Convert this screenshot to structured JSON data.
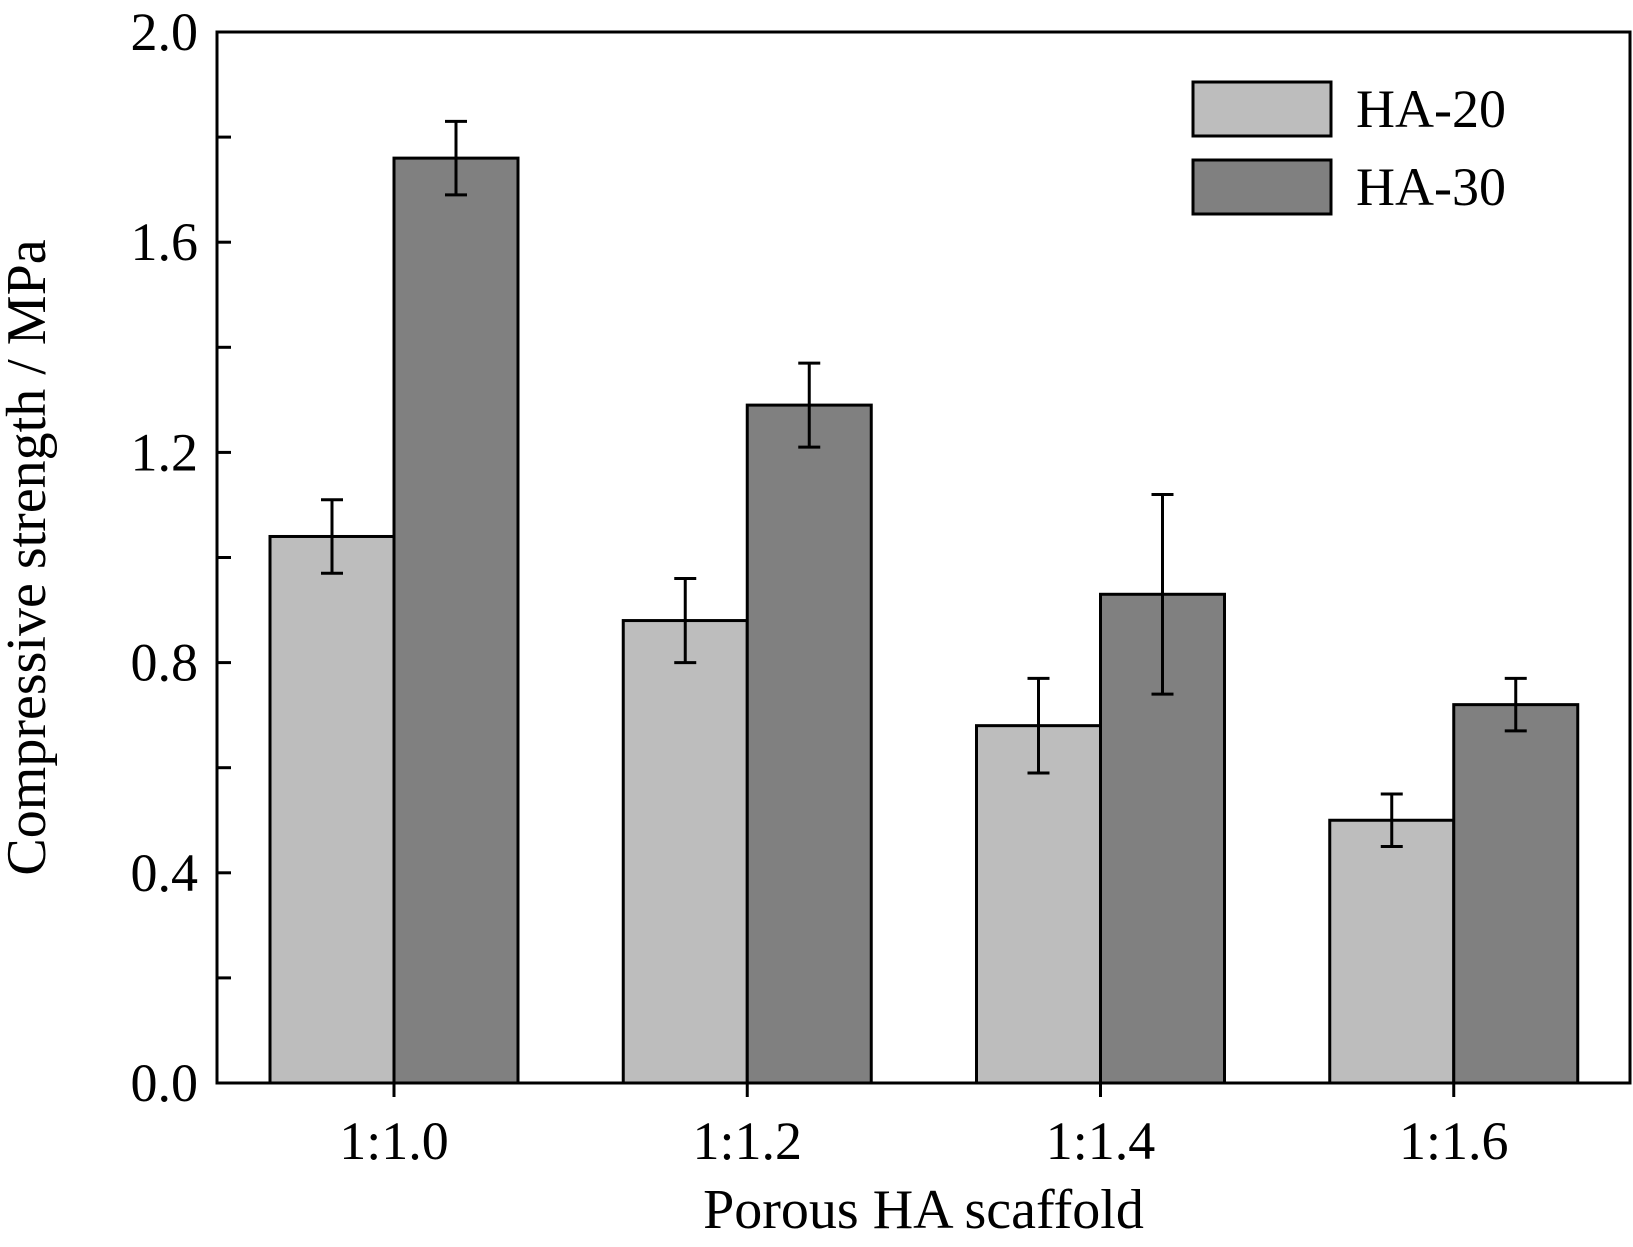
{
  "chart_data": {
    "type": "bar",
    "title": "",
    "xlabel": "Porous HA scaffold",
    "ylabel": "Compressive strength / MPa",
    "ylim": [
      0,
      2.0
    ],
    "yticks": [
      "0.0",
      "0.4",
      "0.8",
      "1.2",
      "1.6",
      "2.0"
    ],
    "yminor_step": 0.2,
    "grid": false,
    "legend_position": "top-right",
    "categories": [
      "1:1.0",
      "1:1.2",
      "1:1.4",
      "1:1.6"
    ],
    "series": [
      {
        "name": "HA-20",
        "color": "#bdbdbd",
        "values": [
          1.04,
          0.88,
          0.68,
          0.5
        ],
        "errors": [
          0.07,
          0.08,
          0.09,
          0.05
        ]
      },
      {
        "name": "HA-30",
        "color": "#808080",
        "values": [
          1.76,
          1.29,
          0.93,
          0.72
        ],
        "errors": [
          0.07,
          0.08,
          0.19,
          0.05
        ]
      }
    ]
  }
}
